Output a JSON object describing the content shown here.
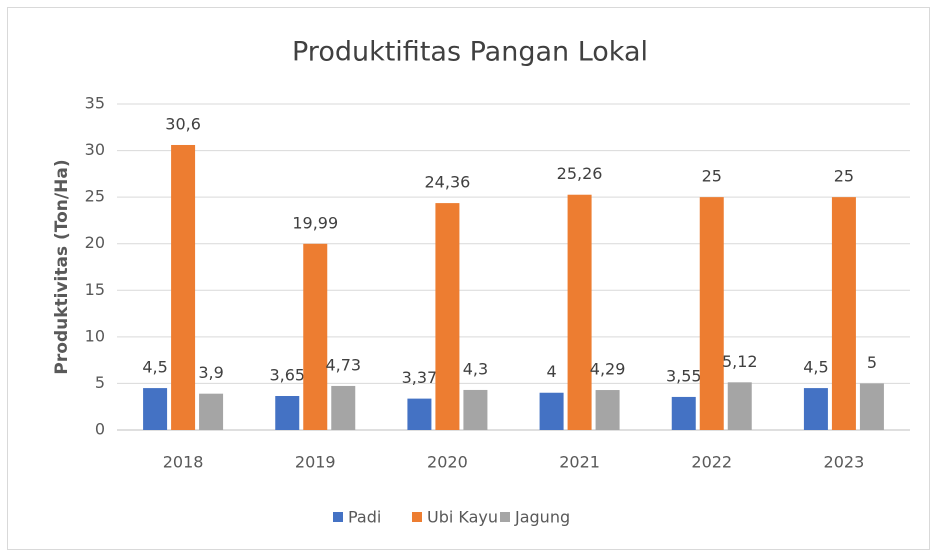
{
  "chart_data": {
    "type": "bar",
    "title": "Produktifitas Pangan Lokal",
    "y_label": "Produktivitas (Ton/Ha)",
    "categories": [
      "2018",
      "2019",
      "2020",
      "2021",
      "2022",
      "2023"
    ],
    "series": [
      {
        "name": "Padi",
        "color": "#4472c4",
        "values": [
          4.5,
          3.65,
          3.37,
          4,
          3.55,
          4.5
        ],
        "value_labels": [
          "4,5",
          "3,65",
          "3,37",
          "4",
          "3,55",
          "4,5"
        ]
      },
      {
        "name": "Ubi Kayu",
        "color": "#ed7d31",
        "values": [
          30.6,
          19.99,
          24.36,
          25.26,
          25,
          25
        ],
        "value_labels": [
          "30,6",
          "19,99",
          "24,36",
          "25,26",
          "25",
          "25"
        ]
      },
      {
        "name": "Jagung",
        "color": "#a5a5a5",
        "values": [
          3.9,
          4.73,
          4.3,
          4.29,
          5.12,
          5
        ],
        "value_labels": [
          "3,9",
          "4,73",
          "4,3",
          "4,29",
          "5,12",
          "5"
        ]
      }
    ],
    "ylim": [
      0,
      35
    ],
    "yticks": [
      0,
      5,
      10,
      15,
      20,
      25,
      30,
      35
    ],
    "grid": true,
    "legend": "bottom"
  }
}
